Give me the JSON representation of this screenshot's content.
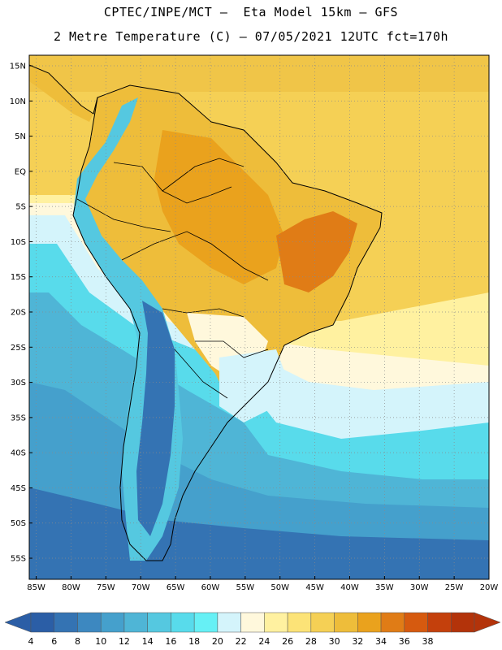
{
  "header": {
    "title_line1": "CPTEC/INPE/MCT –  Eta Model 15km – GFS",
    "title_line2": "2 Metre Temperature (C) – 07/05/2021 12UTC fct=170h"
  },
  "map": {
    "lat_labels": [
      "15N",
      "10N",
      "5N",
      "EQ",
      "5S",
      "10S",
      "15S",
      "20S",
      "25S",
      "30S",
      "35S",
      "40S",
      "45S",
      "50S",
      "55S"
    ],
    "lon_labels": [
      "85W",
      "80W",
      "75W",
      "70W",
      "65W",
      "60W",
      "55W",
      "50W",
      "45W",
      "40W",
      "35W",
      "30W",
      "25W",
      "20W"
    ],
    "lat_values": [
      15,
      10,
      5,
      0,
      -5,
      -10,
      -15,
      -20,
      -25,
      -30,
      -35,
      -40,
      -45,
      -50,
      -55
    ],
    "lon_values": [
      -85,
      -80,
      -75,
      -70,
      -65,
      -60,
      -55,
      -50,
      -45,
      -40,
      -35,
      -30,
      -25,
      -20
    ],
    "lat_range": [
      -58,
      16.5
    ],
    "lon_range": [
      -86,
      -20
    ],
    "gridlines": true
  },
  "colorbar": {
    "labels": [
      "4",
      "6",
      "8",
      "10",
      "12",
      "14",
      "16",
      "18",
      "20",
      "22",
      "24",
      "26",
      "28",
      "30",
      "32",
      "34",
      "36",
      "38"
    ],
    "colors": [
      "#2b5ea6",
      "#3473b3",
      "#3d88c0",
      "#45a0cc",
      "#4fb5d6",
      "#55c8e0",
      "#58dbeb",
      "#66f0f5",
      "#d4f4fb",
      "#fff8dc",
      "#fff1a0",
      "#fce377",
      "#f5d055",
      "#eebd3a",
      "#eaa21d",
      "#e07c16",
      "#d65a0f",
      "#c4400c",
      "#b3330a"
    ],
    "left_arrow_color": "#2b5ea6",
    "right_arrow_color": "#b3330a"
  }
}
